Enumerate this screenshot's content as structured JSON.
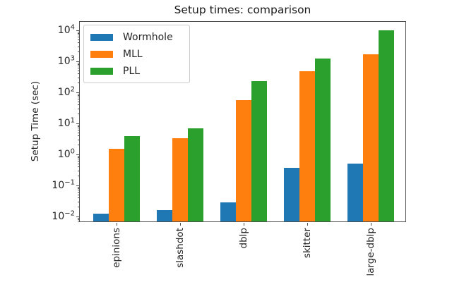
{
  "chart_data": {
    "type": "bar",
    "title": "Setup times: comparison",
    "ylabel": "Setup Time (sec)",
    "xlabel": "",
    "yscale": "log",
    "ylim": [
      0.0063,
      21000
    ],
    "grid": false,
    "legend_position": "upper left",
    "categories": [
      "epinions",
      "slashdot",
      "dblp",
      "skitter",
      "large-dblp"
    ],
    "series": [
      {
        "name": "Wormhole",
        "color": "#1f77b4",
        "values": [
          0.012,
          0.015,
          0.027,
          0.36,
          0.47
        ]
      },
      {
        "name": "MLL",
        "color": "#ff7f0e",
        "values": [
          1.45,
          3.2,
          52,
          455,
          1600
        ]
      },
      {
        "name": "PLL",
        "color": "#2ca02c",
        "values": [
          3.7,
          6.5,
          215,
          1150,
          9500
        ]
      }
    ],
    "y_tick_exponents": [
      4,
      3,
      2,
      1,
      0,
      -1,
      -2
    ]
  }
}
